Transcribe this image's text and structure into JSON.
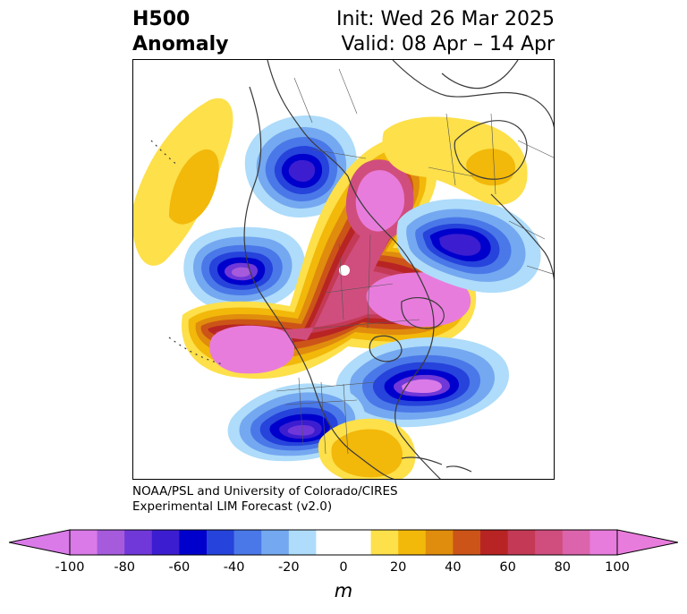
{
  "title": {
    "left_line1": "H500",
    "left_line2": "Anomaly",
    "right_line1": "Init: Wed 26 Mar 2025",
    "right_line2": "Valid: 08 Apr – 14 Apr"
  },
  "credit": {
    "line1": "NOAA/PSL and University of Colorado/CIRES",
    "line2": "Experimental LIM Forecast (v2.0)"
  },
  "colorbar": {
    "unit": "m",
    "ticks": [
      "-100",
      "-80",
      "-60",
      "-40",
      "-20",
      "0",
      "20",
      "40",
      "60",
      "80",
      "100"
    ],
    "colors": [
      "#d97ae8",
      "#a55bdc",
      "#7038d8",
      "#3c1dd0",
      "#0000cc",
      "#2643db",
      "#4a78e8",
      "#74a8f0",
      "#aedcfa",
      "#ffffff",
      "#ffffff",
      "#fde04a",
      "#f2b80a",
      "#e08c0d",
      "#cc5418",
      "#b82424",
      "#c43a56",
      "#d04e7e",
      "#dc64ac",
      "#e87cdc"
    ],
    "extend": "both",
    "under_color": "#d97ae8",
    "over_color": "#e87cdc"
  },
  "map": {
    "projection": "polar stereographic, North Pole",
    "features": [
      "coastlines",
      "country borders",
      "state/province borders"
    ],
    "anomaly_centers": [
      {
        "sign": "negative",
        "region": "Alaska / Yukon",
        "level": "-60"
      },
      {
        "sign": "negative",
        "region": "North Pacific",
        "level": "-80"
      },
      {
        "sign": "negative",
        "region": "Southwest United States",
        "level": "-80"
      },
      {
        "sign": "negative",
        "region": "North Atlantic",
        "level": "-100"
      },
      {
        "sign": "negative",
        "region": "Northern Europe / Scandinavia",
        "level": "-60"
      },
      {
        "sign": "positive",
        "region": "Central Canada",
        "level": "100"
      },
      {
        "sign": "positive",
        "region": "Siberia / Arctic",
        "level": "100"
      },
      {
        "sign": "positive",
        "region": "Central North Pacific",
        "level": "100"
      },
      {
        "sign": "positive",
        "region": "Western North Pacific",
        "level": "40"
      },
      {
        "sign": "positive",
        "region": "Western Europe",
        "level": "40"
      },
      {
        "sign": "positive",
        "region": "Gulf of Mexico / Caribbean",
        "level": "40"
      }
    ]
  }
}
